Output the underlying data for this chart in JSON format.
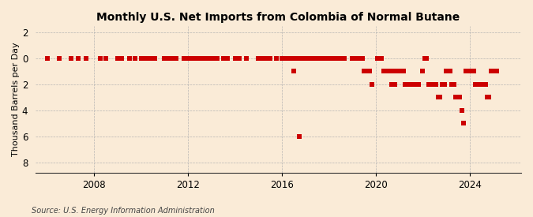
{
  "title": "Monthly U.S. Net Imports from Colombia of Normal Butane",
  "ylabel": "Thousand Barrels per Day",
  "source": "Source: U.S. Energy Information Administration",
  "bg_color": "#faebd7",
  "marker_color": "#cc0000",
  "marker_size": 4.5,
  "xlim": [
    2005.5,
    2026.2
  ],
  "ylim": [
    -8.8,
    2.5
  ],
  "yticks": [
    -8,
    -6,
    -4,
    -2,
    0,
    2
  ],
  "ytick_labels": [
    "8",
    "6",
    "4",
    "2",
    "0",
    "2"
  ],
  "xticks": [
    2008,
    2012,
    2016,
    2020,
    2024
  ],
  "data_points": [
    [
      2006.0,
      0
    ],
    [
      2006.5,
      0
    ],
    [
      2007.0,
      0
    ],
    [
      2007.33,
      0
    ],
    [
      2007.67,
      0
    ],
    [
      2008.25,
      0
    ],
    [
      2008.5,
      0
    ],
    [
      2009.0,
      0
    ],
    [
      2009.17,
      0
    ],
    [
      2009.5,
      0
    ],
    [
      2009.75,
      0
    ],
    [
      2010.0,
      0
    ],
    [
      2010.08,
      0
    ],
    [
      2010.25,
      0
    ],
    [
      2010.42,
      0
    ],
    [
      2010.58,
      0
    ],
    [
      2011.0,
      0
    ],
    [
      2011.17,
      0
    ],
    [
      2011.33,
      0
    ],
    [
      2011.5,
      0
    ],
    [
      2011.83,
      0
    ],
    [
      2012.0,
      0
    ],
    [
      2012.08,
      0
    ],
    [
      2012.17,
      0
    ],
    [
      2012.25,
      0
    ],
    [
      2012.33,
      0
    ],
    [
      2012.5,
      0
    ],
    [
      2012.67,
      0
    ],
    [
      2012.75,
      0
    ],
    [
      2012.83,
      0
    ],
    [
      2012.92,
      0
    ],
    [
      2013.08,
      0
    ],
    [
      2013.25,
      0
    ],
    [
      2013.5,
      0
    ],
    [
      2013.67,
      0
    ],
    [
      2014.0,
      0
    ],
    [
      2014.17,
      0
    ],
    [
      2014.5,
      0
    ],
    [
      2015.0,
      0
    ],
    [
      2015.17,
      0
    ],
    [
      2015.33,
      0
    ],
    [
      2015.5,
      0
    ],
    [
      2015.75,
      0
    ],
    [
      2016.0,
      0
    ],
    [
      2016.17,
      0
    ],
    [
      2016.25,
      0
    ],
    [
      2016.33,
      0
    ],
    [
      2016.42,
      0
    ],
    [
      2016.5,
      0
    ],
    [
      2016.58,
      0
    ],
    [
      2016.67,
      0
    ],
    [
      2016.75,
      0
    ],
    [
      2016.83,
      0
    ],
    [
      2016.5,
      -1
    ],
    [
      2016.75,
      -6
    ],
    [
      2017.0,
      0
    ],
    [
      2017.08,
      0
    ],
    [
      2017.17,
      0
    ],
    [
      2017.25,
      0
    ],
    [
      2017.33,
      0
    ],
    [
      2017.42,
      0
    ],
    [
      2017.5,
      0
    ],
    [
      2017.58,
      0
    ],
    [
      2017.67,
      0
    ],
    [
      2017.75,
      0
    ],
    [
      2017.83,
      0
    ],
    [
      2017.92,
      0
    ],
    [
      2018.0,
      0
    ],
    [
      2018.08,
      0
    ],
    [
      2018.17,
      0
    ],
    [
      2018.25,
      0
    ],
    [
      2018.33,
      0
    ],
    [
      2018.42,
      0
    ],
    [
      2018.5,
      0
    ],
    [
      2018.58,
      0
    ],
    [
      2018.67,
      0
    ],
    [
      2019.0,
      0
    ],
    [
      2019.08,
      0
    ],
    [
      2019.17,
      0
    ],
    [
      2019.25,
      0
    ],
    [
      2019.33,
      0
    ],
    [
      2019.42,
      0
    ],
    [
      2019.5,
      -1
    ],
    [
      2019.58,
      -1
    ],
    [
      2019.75,
      -1
    ],
    [
      2019.83,
      -2
    ],
    [
      2020.08,
      0
    ],
    [
      2020.17,
      0
    ],
    [
      2020.25,
      0
    ],
    [
      2020.33,
      -1
    ],
    [
      2020.42,
      -1
    ],
    [
      2020.5,
      -1
    ],
    [
      2020.58,
      -1
    ],
    [
      2020.67,
      -1
    ],
    [
      2020.75,
      -1
    ],
    [
      2020.67,
      -2
    ],
    [
      2020.75,
      -2
    ],
    [
      2020.83,
      -2
    ],
    [
      2020.92,
      -1
    ],
    [
      2021.0,
      -1
    ],
    [
      2021.0,
      -1
    ],
    [
      2021.08,
      -1
    ],
    [
      2021.17,
      -1
    ],
    [
      2021.25,
      -2
    ],
    [
      2021.33,
      -2
    ],
    [
      2021.42,
      -2
    ],
    [
      2021.5,
      -2
    ],
    [
      2021.58,
      -2
    ],
    [
      2021.67,
      -2
    ],
    [
      2021.75,
      -2
    ],
    [
      2021.83,
      -2
    ],
    [
      2022.0,
      -1
    ],
    [
      2022.08,
      0
    ],
    [
      2022.17,
      0
    ],
    [
      2022.25,
      -2
    ],
    [
      2022.33,
      -2
    ],
    [
      2022.42,
      -2
    ],
    [
      2022.5,
      -2
    ],
    [
      2022.58,
      -2
    ],
    [
      2022.67,
      -3
    ],
    [
      2022.75,
      -3
    ],
    [
      2022.83,
      -2
    ],
    [
      2022.92,
      -2
    ],
    [
      2023.0,
      -1
    ],
    [
      2023.08,
      -1
    ],
    [
      2023.17,
      -1
    ],
    [
      2023.25,
      -2
    ],
    [
      2023.33,
      -2
    ],
    [
      2023.42,
      -3
    ],
    [
      2023.5,
      -3
    ],
    [
      2023.58,
      -3
    ],
    [
      2023.67,
      -4
    ],
    [
      2023.75,
      -5
    ],
    [
      2023.83,
      -1
    ],
    [
      2023.92,
      -1
    ],
    [
      2024.0,
      -1
    ],
    [
      2024.08,
      -1
    ],
    [
      2024.17,
      -1
    ],
    [
      2024.25,
      -2
    ],
    [
      2024.33,
      -2
    ],
    [
      2024.42,
      -2
    ],
    [
      2024.5,
      -2
    ],
    [
      2024.58,
      -2
    ],
    [
      2024.67,
      -2
    ],
    [
      2024.75,
      -3
    ],
    [
      2024.83,
      -3
    ],
    [
      2024.92,
      -1
    ],
    [
      2025.0,
      -1
    ],
    [
      2025.08,
      -1
    ],
    [
      2025.17,
      -1
    ]
  ]
}
